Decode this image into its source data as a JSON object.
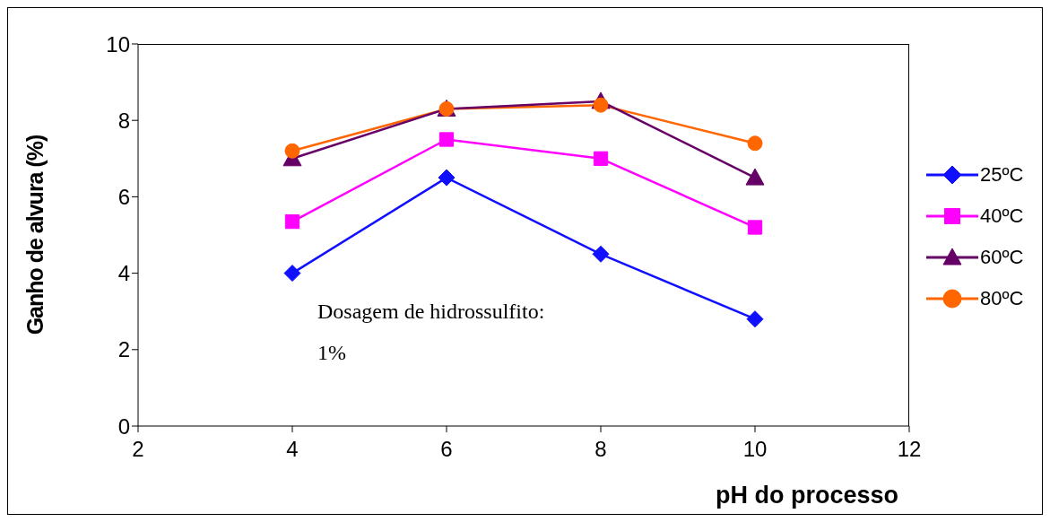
{
  "chart_data": {
    "type": "line",
    "xlabel": "pH do processo",
    "ylabel": "Ganho de alvura (%)",
    "x": [
      4,
      6,
      8,
      10
    ],
    "series": [
      {
        "name": "25ºC",
        "color": "#1010ff",
        "marker": "diamond",
        "values": [
          4.0,
          6.5,
          4.5,
          2.8
        ]
      },
      {
        "name": "40ºC",
        "color": "#ff00ff",
        "marker": "square",
        "values": [
          5.35,
          7.5,
          7.0,
          5.2
        ]
      },
      {
        "name": "60ºC",
        "color": "#660066",
        "marker": "triangle",
        "values": [
          7.0,
          8.3,
          8.5,
          6.5
        ]
      },
      {
        "name": "80ºC",
        "color": "#ff6600",
        "marker": "circle",
        "values": [
          7.2,
          8.3,
          8.4,
          7.4
        ]
      }
    ],
    "xlim": [
      2,
      12
    ],
    "xticks": [
      2,
      4,
      6,
      8,
      10,
      12
    ],
    "ylim": [
      0,
      10
    ],
    "yticks": [
      0,
      2,
      4,
      6,
      8,
      10
    ],
    "grid": false,
    "legend": "right",
    "line_style": "solid",
    "annotations": [
      "Dosagem de hidrossulfito:",
      "1%"
    ]
  }
}
